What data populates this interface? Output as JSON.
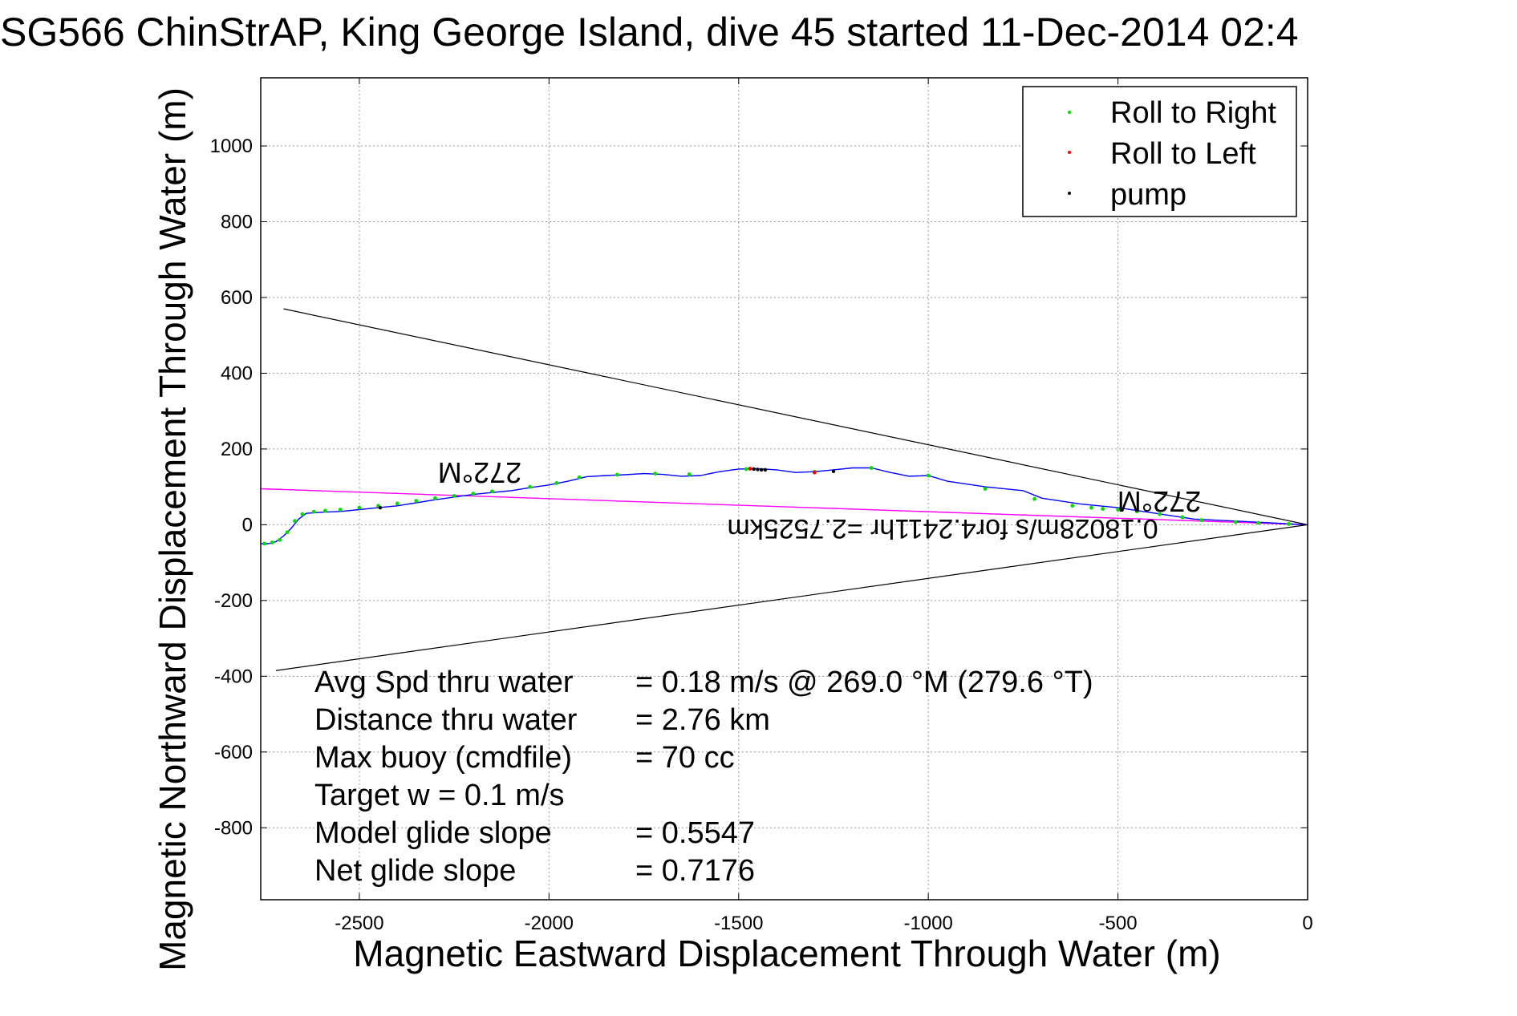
{
  "chart_data": {
    "type": "line",
    "title": "SG566 ChinStrAP, King George Island, dive 45 started 11-Dec-2014 02:4",
    "xlabel": "Magnetic Eastward Displacement Through Water (m)",
    "ylabel": "Magnetic Northward Displacement Through Water (m)",
    "xlim": [
      -2760,
      0
    ],
    "ylim": [
      -990,
      1180
    ],
    "grid": true,
    "legend_position": "top-right",
    "x_ticks": [
      -2500,
      -2000,
      -1500,
      -1000,
      -500,
      0
    ],
    "x_tick_labels": [
      "-2500",
      "-2000",
      "-1500",
      "-1000",
      "-500",
      "0"
    ],
    "y_ticks": [
      1000,
      800,
      600,
      400,
      200,
      0,
      -200,
      -400,
      -600,
      -800
    ],
    "y_tick_labels": [
      "1000",
      "800",
      "600",
      "400",
      "200",
      "0",
      "-200",
      "-400",
      "-600",
      "-800"
    ],
    "legend": [
      {
        "name": "Roll to Right",
        "color": "#00dd00"
      },
      {
        "name": "Roll to Left",
        "color": "#ff0000"
      },
      {
        "name": "pump",
        "color": "#000000"
      }
    ],
    "track": {
      "color": "#0000ff",
      "x": [
        0,
        -100,
        -200,
        -300,
        -400,
        -500,
        -600,
        -700,
        -750,
        -850,
        -950,
        -1000,
        -1050,
        -1100,
        -1150,
        -1200,
        -1250,
        -1300,
        -1350,
        -1400,
        -1450,
        -1500,
        -1550,
        -1600,
        -1650,
        -1700,
        -1750,
        -1800,
        -1850,
        -1900,
        -1950,
        -2000,
        -2050,
        -2100,
        -2150,
        -2200,
        -2250,
        -2300,
        -2350,
        -2400,
        -2450,
        -2500,
        -2550,
        -2600,
        -2640,
        -2660,
        -2680,
        -2700,
        -2720,
        -2740,
        -2760
      ],
      "y": [
        0,
        5,
        10,
        15,
        30,
        45,
        55,
        70,
        90,
        100,
        115,
        130,
        128,
        138,
        150,
        150,
        145,
        140,
        138,
        145,
        148,
        147,
        140,
        130,
        128,
        133,
        135,
        132,
        130,
        127,
        115,
        105,
        98,
        90,
        85,
        80,
        73,
        66,
        58,
        50,
        45,
        40,
        35,
        33,
        30,
        15,
        -10,
        -30,
        -45,
        -50,
        -50
      ]
    },
    "roll_right": {
      "x": [
        -50,
        -130,
        -190,
        -280,
        -330,
        -390,
        -450,
        -500,
        -540,
        -570,
        -620,
        -720,
        -850,
        -1000,
        -1150,
        -1300,
        -1480,
        -1630,
        -1720,
        -1820,
        -1920,
        -1980,
        -2050,
        -2150,
        -2200,
        -2250,
        -2300,
        -2350,
        -2400,
        -2450,
        -2500,
        -2550,
        -2590,
        -2620,
        -2650,
        -2670,
        -2690,
        -2710,
        -2730,
        -2750
      ],
      "y": [
        2,
        5,
        7,
        12,
        20,
        28,
        35,
        40,
        42,
        45,
        50,
        68,
        95,
        130,
        150,
        140,
        147,
        133,
        135,
        132,
        125,
        110,
        100,
        88,
        82,
        76,
        70,
        63,
        56,
        50,
        45,
        40,
        37,
        34,
        28,
        10,
        -20,
        -40,
        -47,
        -50
      ]
    },
    "roll_left": {
      "x": [
        -1300,
        -1470
      ],
      "y": [
        138,
        148
      ]
    },
    "pump": {
      "x": [
        -1430,
        -1440,
        -1450,
        -1460,
        -2445,
        -1250
      ],
      "y": [
        145,
        145,
        146,
        147,
        45,
        141
      ]
    },
    "cone_lines": {
      "color": "#000000",
      "upper": {
        "x": [
          0,
          -2700
        ],
        "y": [
          0,
          570
        ]
      },
      "lower": {
        "x": [
          0,
          -2720
        ],
        "y": [
          0,
          -385
        ]
      }
    },
    "heading_line": {
      "color": "#ff00ff",
      "x": [
        0,
        -2760
      ],
      "y": [
        0,
        95
      ]
    },
    "annotations": {
      "heading_near": "272°M",
      "heading_far": "272°M",
      "distance_label": "0.18028m/s for4.2411hr =2.7525km"
    },
    "stats": [
      {
        "label": "Avg Spd thru water",
        "value": "=  0.18 m/s @ 269.0 °M (279.6 °T)"
      },
      {
        "label": "Distance thru water",
        "value": "=  2.76 km"
      },
      {
        "label": "Max buoy (cmdfile)",
        "value": "= 70 cc"
      },
      {
        "label": "Target w    = 0.1 m/s",
        "value": ""
      },
      {
        "label": "Model glide slope",
        "value": "= 0.5547"
      },
      {
        "label": "Net glide slope",
        "value": "= 0.7176"
      }
    ]
  }
}
